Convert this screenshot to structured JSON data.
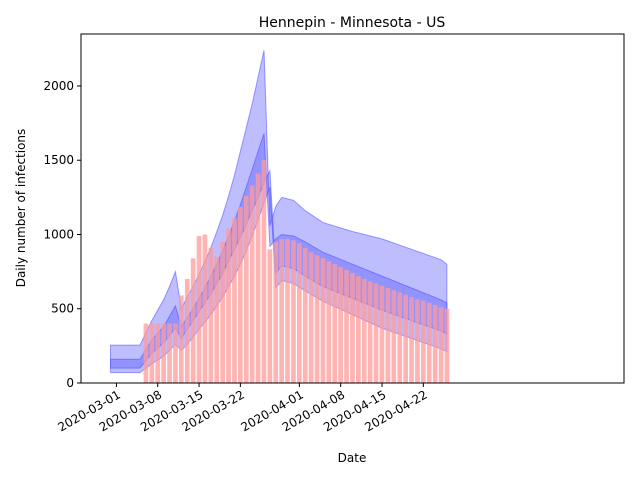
{
  "chart_data": {
    "type": "bar",
    "title": "Hennepin - Minnesota - US",
    "xlabel": "Date",
    "ylabel": "Daily number of infections",
    "xlim_days_from_2020_03_01": [
      -6,
      86
    ],
    "ylim": [
      0,
      2350
    ],
    "yticks": [
      0,
      500,
      1000,
      1500,
      2000
    ],
    "xticks": [
      {
        "day": 0,
        "label": "2020-03-01"
      },
      {
        "day": 7,
        "label": "2020-03-08"
      },
      {
        "day": 14,
        "label": "2020-03-15"
      },
      {
        "day": 21,
        "label": "2020-03-22"
      },
      {
        "day": 31,
        "label": "2020-04-01"
      },
      {
        "day": 38,
        "label": "2020-04-08"
      },
      {
        "day": 45,
        "label": "2020-04-15"
      },
      {
        "day": 52,
        "label": "2020-04-22"
      }
    ],
    "bar_color": "#ff9999",
    "band_color": "#4444ff",
    "bars": {
      "start_day": 5,
      "values": [
        400,
        400,
        400,
        400,
        400,
        400,
        590,
        700,
        840,
        990,
        1000,
        910,
        850,
        950,
        1040,
        1110,
        1185,
        1260,
        1330,
        1410,
        1500,
        900,
        950,
        970,
        970,
        960,
        940,
        910,
        880,
        860,
        840,
        820,
        800,
        780,
        760,
        740,
        720,
        700,
        685,
        670,
        655,
        640,
        625,
        610,
        595,
        580,
        565,
        555,
        540,
        525,
        510,
        500
      ]
    },
    "bands": {
      "x": [
        -1,
        4,
        6,
        8,
        9,
        10,
        11,
        12,
        13,
        14,
        15,
        16,
        17,
        18,
        19,
        20,
        21,
        22,
        23,
        24,
        25,
        26,
        27,
        28,
        30,
        32,
        35,
        40,
        45,
        50,
        55,
        56
      ],
      "outer_lower": [
        70,
        70,
        130,
        180,
        220,
        260,
        220,
        260,
        310,
        360,
        410,
        460,
        520,
        580,
        650,
        720,
        800,
        890,
        990,
        1100,
        1210,
        1320,
        640,
        690,
        670,
        620,
        550,
        460,
        370,
        300,
        230,
        210
      ],
      "outer_upper": [
        255,
        255,
        420,
        560,
        650,
        750,
        500,
        580,
        650,
        730,
        820,
        910,
        1020,
        1130,
        1260,
        1400,
        1560,
        1720,
        1880,
        2060,
        2240,
        1060,
        1190,
        1250,
        1230,
        1160,
        1080,
        1020,
        970,
        900,
        830,
        800
      ],
      "inner_lower": [
        100,
        100,
        200,
        270,
        320,
        370,
        300,
        360,
        420,
        480,
        540,
        600,
        670,
        740,
        820,
        900,
        980,
        1070,
        1160,
        1250,
        1350,
        1430,
        740,
        790,
        770,
        720,
        650,
        570,
        490,
        420,
        350,
        330
      ],
      "inner_upper": [
        160,
        160,
        290,
        380,
        450,
        520,
        380,
        440,
        500,
        570,
        640,
        720,
        800,
        890,
        990,
        1090,
        1200,
        1320,
        1440,
        1560,
        1680,
        920,
        970,
        1000,
        990,
        950,
        880,
        800,
        720,
        640,
        560,
        540
      ]
    }
  }
}
